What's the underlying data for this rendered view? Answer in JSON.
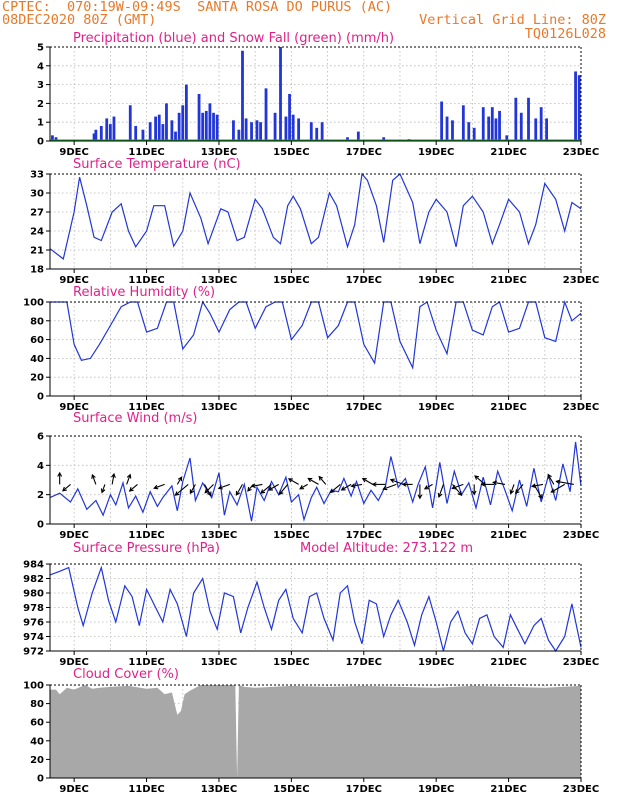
{
  "header": {
    "line1_left": "CPTEC:  070:19W-09:49S  SANTA ROSA DO PURUS (AC)",
    "line2_left": "08DEC2020 80Z (GMT)",
    "line2_right": "Vertical Grid Line: 80Z",
    "line3_right": "TQ0126L028"
  },
  "colors": {
    "header_text": "#e8792a",
    "panel_title": "#e0208a",
    "line_series": "#2236d8",
    "precip_bars": "#2236d8",
    "snow_line": "#1f9e2c",
    "cloud_fill": "#a8a8a8",
    "wind_arrows": "#000000"
  },
  "shared_x_axis": {
    "tick_labels": [
      "9DEC",
      "11DEC",
      "13DEC",
      "15DEC",
      "17DEC",
      "19DEC",
      "21DEC",
      "23DEC"
    ],
    "tick_days": [
      9,
      11,
      13,
      15,
      17,
      19,
      21,
      23
    ],
    "start_day": 8.333,
    "end_day": 23.0,
    "vertical_grid_each_day": true
  },
  "chart_data": [
    {
      "id": "precip",
      "type": "bar",
      "title": "Precipitation (blue) and Snow Fall (green) (mm/h)",
      "ylim": [
        0,
        5
      ],
      "yticks": [
        0,
        1,
        2,
        3,
        4,
        5
      ],
      "grid": true,
      "series": [
        {
          "name": "Precipitation",
          "x": [
            8.4,
            8.5,
            9.55,
            9.6,
            9.75,
            9.9,
            10.0,
            10.1,
            10.55,
            10.7,
            10.9,
            11.1,
            11.25,
            11.35,
            11.45,
            11.55,
            11.7,
            11.8,
            11.9,
            12.0,
            12.1,
            12.45,
            12.55,
            12.65,
            12.75,
            12.85,
            12.95,
            13.4,
            13.55,
            13.65,
            13.75,
            13.9,
            14.05,
            14.15,
            14.3,
            14.55,
            14.7,
            14.85,
            14.95,
            15.05,
            15.2,
            15.55,
            15.7,
            15.85,
            16.55,
            16.85,
            17.55,
            18.25,
            19.15,
            19.3,
            19.45,
            19.75,
            19.9,
            20.05,
            20.3,
            20.45,
            20.55,
            20.65,
            20.75,
            20.95,
            21.2,
            21.35,
            21.55,
            21.75,
            21.9,
            22.05,
            22.85,
            22.95
          ],
          "values": [
            0.3,
            0.2,
            0.4,
            0.6,
            0.8,
            1.2,
            0.9,
            1.3,
            1.9,
            0.8,
            0.6,
            1.0,
            1.3,
            1.4,
            0.9,
            2.0,
            1.1,
            0.5,
            1.5,
            1.9,
            3.0,
            2.5,
            1.5,
            1.6,
            2.0,
            1.5,
            1.4,
            1.1,
            0.6,
            4.8,
            1.2,
            1.0,
            1.1,
            1.0,
            2.8,
            1.5,
            5.0,
            1.3,
            2.5,
            1.4,
            1.2,
            1.0,
            0.7,
            1.0,
            0.2,
            0.5,
            0.2,
            0.1,
            2.1,
            1.3,
            1.1,
            1.9,
            1.0,
            0.7,
            1.8,
            1.3,
            1.8,
            1.2,
            1.6,
            0.3,
            2.3,
            1.5,
            2.3,
            1.2,
            1.8,
            1.2,
            3.7,
            3.5
          ]
        },
        {
          "name": "Snow Fall",
          "x": [
            8.333,
            23.0
          ],
          "values": [
            0,
            0
          ]
        }
      ]
    },
    {
      "id": "temp",
      "type": "line",
      "title": "Surface Temperature (nC)",
      "ylim": [
        18,
        33
      ],
      "yticks": [
        18,
        21,
        24,
        27,
        30,
        33
      ],
      "grid": true,
      "series": [
        {
          "name": "Temperature",
          "x": [
            8.333,
            8.7,
            9.0,
            9.15,
            9.35,
            9.55,
            9.75,
            10.05,
            10.3,
            10.5,
            10.7,
            11.0,
            11.2,
            11.5,
            11.75,
            12.0,
            12.2,
            12.5,
            12.7,
            13.05,
            13.25,
            13.5,
            13.7,
            14.0,
            14.2,
            14.5,
            14.7,
            14.9,
            15.05,
            15.25,
            15.55,
            15.75,
            16.05,
            16.25,
            16.55,
            16.75,
            16.95,
            17.1,
            17.35,
            17.55,
            17.8,
            18.0,
            18.35,
            18.55,
            18.8,
            19.0,
            19.3,
            19.55,
            19.75,
            20.0,
            20.3,
            20.55,
            20.75,
            21.0,
            21.3,
            21.55,
            21.75,
            22.0,
            22.3,
            22.55,
            22.75,
            23.0
          ],
          "values": [
            21.2,
            19.6,
            27.0,
            32.5,
            28.0,
            23.0,
            22.5,
            27.0,
            28.3,
            24.0,
            21.5,
            24.0,
            28.0,
            28.0,
            21.6,
            24.0,
            30.0,
            26.0,
            22.0,
            27.5,
            27.0,
            22.5,
            23.0,
            29.0,
            27.5,
            23.0,
            22.0,
            28.0,
            29.5,
            27.5,
            22.0,
            23.0,
            30.0,
            28.0,
            21.5,
            25.0,
            33.0,
            32.0,
            28.0,
            22.2,
            32.0,
            33.0,
            28.5,
            22.0,
            27.0,
            29.0,
            27.0,
            21.5,
            28.0,
            29.5,
            27.0,
            22.0,
            25.0,
            29.0,
            27.0,
            22.0,
            25.0,
            31.5,
            29.0,
            24.0,
            28.5,
            27.5
          ]
        }
      ]
    },
    {
      "id": "rh",
      "type": "line",
      "title": "Relative Humidity (%)",
      "ylim": [
        0,
        100
      ],
      "yticks": [
        0,
        20,
        40,
        60,
        80,
        100
      ],
      "grid": true,
      "series": [
        {
          "name": "Relative Humidity",
          "x": [
            8.333,
            8.8,
            9.0,
            9.2,
            9.45,
            9.7,
            10.0,
            10.3,
            10.55,
            10.75,
            11.0,
            11.3,
            11.55,
            11.75,
            12.0,
            12.3,
            12.55,
            12.75,
            13.0,
            13.3,
            13.55,
            13.75,
            14.0,
            14.3,
            14.55,
            14.75,
            15.0,
            15.3,
            15.55,
            15.75,
            16.0,
            16.3,
            16.55,
            16.75,
            17.0,
            17.3,
            17.55,
            17.75,
            18.0,
            18.35,
            18.55,
            18.75,
            19.0,
            19.3,
            19.55,
            19.75,
            20.0,
            20.3,
            20.55,
            20.75,
            21.0,
            21.3,
            21.55,
            21.75,
            22.0,
            22.3,
            22.55,
            22.75,
            23.0
          ],
          "values": [
            100,
            100,
            55,
            38,
            40,
            55,
            75,
            95,
            100,
            100,
            68,
            72,
            100,
            100,
            50,
            65,
            100,
            88,
            68,
            92,
            100,
            100,
            72,
            95,
            100,
            100,
            60,
            75,
            100,
            100,
            62,
            75,
            100,
            100,
            55,
            35,
            100,
            100,
            58,
            30,
            95,
            100,
            70,
            45,
            100,
            100,
            70,
            65,
            95,
            100,
            68,
            72,
            100,
            100,
            62,
            58,
            100,
            80,
            88
          ]
        }
      ]
    },
    {
      "id": "wind",
      "type": "line",
      "title": "Surface Wind (m/s)",
      "ylim": [
        0,
        6
      ],
      "yticks": [
        0,
        2,
        4,
        6
      ],
      "grid": true,
      "series": [
        {
          "name": "Wind Speed",
          "x": [
            8.333,
            8.6,
            8.9,
            9.1,
            9.35,
            9.6,
            9.8,
            10.0,
            10.15,
            10.35,
            10.5,
            10.7,
            10.9,
            11.1,
            11.3,
            11.45,
            11.7,
            11.85,
            12.0,
            12.2,
            12.35,
            12.55,
            12.8,
            13.0,
            13.15,
            13.3,
            13.5,
            13.7,
            13.9,
            14.05,
            14.25,
            14.45,
            14.65,
            14.85,
            15.0,
            15.2,
            15.35,
            15.55,
            15.7,
            15.9,
            16.1,
            16.3,
            16.45,
            16.65,
            16.8,
            17.0,
            17.2,
            17.4,
            17.6,
            17.75,
            17.95,
            18.15,
            18.35,
            18.5,
            18.7,
            18.9,
            19.1,
            19.3,
            19.5,
            19.7,
            19.9,
            20.1,
            20.3,
            20.5,
            20.7,
            20.9,
            21.1,
            21.3,
            21.5,
            21.7,
            21.9,
            22.1,
            22.3,
            22.5,
            22.7,
            22.85,
            23.0
          ],
          "values": [
            1.8,
            2.1,
            1.5,
            2.4,
            1.0,
            1.6,
            0.6,
            2.0,
            1.3,
            2.8,
            1.1,
            1.9,
            0.8,
            2.2,
            1.2,
            1.8,
            2.6,
            0.9,
            2.9,
            4.5,
            1.6,
            2.8,
            1.8,
            3.5,
            0.6,
            2.2,
            1.3,
            2.7,
            0.2,
            2.5,
            1.6,
            2.9,
            2.0,
            3.2,
            1.5,
            2.0,
            0.3,
            1.8,
            2.5,
            1.4,
            2.3,
            2.2,
            3.1,
            1.9,
            2.9,
            1.4,
            2.3,
            1.6,
            2.6,
            4.6,
            2.5,
            3.1,
            1.5,
            2.7,
            3.9,
            1.1,
            4.2,
            1.4,
            3.6,
            2.0,
            2.8,
            1.1,
            3.2,
            1.3,
            3.6,
            2.3,
            0.9,
            3.0,
            1.2,
            3.8,
            1.5,
            3.3,
            1.6,
            4.1,
            2.2,
            5.6,
            2.6
          ]
        },
        {
          "name": "Wind Direction",
          "x": [
            8.6,
            8.9,
            9.6,
            9.85,
            10.05,
            10.45,
            10.75,
            11.5,
            11.85,
            12.15,
            12.35,
            12.6,
            12.85,
            13.3,
            13.65,
            13.95,
            14.2,
            14.45,
            14.65,
            14.9,
            15.2,
            15.45,
            15.75,
            15.95,
            16.35,
            16.65,
            16.95,
            17.25,
            17.6,
            17.9,
            18.1,
            18.35,
            18.55,
            18.9,
            19.2,
            19.45,
            19.75,
            20.05,
            20.35,
            20.6,
            20.9,
            21.15,
            21.4,
            21.7,
            21.95,
            22.25,
            22.55,
            22.8
          ],
          "values": [
            0.0,
            230.0,
            340.0,
            200.0,
            10.0,
            20.0,
            230.0,
            250.0,
            30.0,
            230.0,
            210.0,
            150.0,
            225.0,
            250.0,
            210.0,
            220.0,
            260.0,
            230.0,
            240.0,
            220.0,
            300.0,
            240.0,
            300.0,
            320.0,
            230.0,
            240.0,
            260.0,
            300.0,
            270.0,
            250.0,
            290.0,
            270.0,
            180.0,
            240.0,
            200.0,
            140.0,
            250.0,
            180.0,
            310.0,
            270.0,
            280.0,
            200.0,
            220.0,
            150.0,
            260.0,
            330.0,
            240.0,
            280.0
          ]
        }
      ]
    },
    {
      "id": "pres",
      "type": "line",
      "title": "Surface Pressure (hPa)",
      "annotation": "Model Altitude: 273.122 m",
      "ylim": [
        972,
        984
      ],
      "yticks": [
        972,
        974,
        976,
        978,
        980,
        982,
        984
      ],
      "grid": true,
      "series": [
        {
          "name": "Pressure",
          "x": [
            8.333,
            8.6,
            8.85,
            9.1,
            9.25,
            9.5,
            9.75,
            9.95,
            10.15,
            10.4,
            10.6,
            10.8,
            11.0,
            11.2,
            11.45,
            11.65,
            11.85,
            12.1,
            12.3,
            12.55,
            12.75,
            12.95,
            13.15,
            13.4,
            13.6,
            13.8,
            14.05,
            14.25,
            14.45,
            14.65,
            14.85,
            15.05,
            15.3,
            15.5,
            15.7,
            15.9,
            16.15,
            16.35,
            16.55,
            16.75,
            16.95,
            17.15,
            17.35,
            17.55,
            17.75,
            17.95,
            18.2,
            18.4,
            18.6,
            18.8,
            19.0,
            19.2,
            19.4,
            19.6,
            19.8,
            20.0,
            20.2,
            20.4,
            20.6,
            20.85,
            21.05,
            21.25,
            21.45,
            21.7,
            21.9,
            22.1,
            22.3,
            22.55,
            22.75,
            23.0
          ],
          "values": [
            982.5,
            983.0,
            983.5,
            978.0,
            975.5,
            980.0,
            983.5,
            979.0,
            976.0,
            981.0,
            979.5,
            975.5,
            980.5,
            978.5,
            976.0,
            980.5,
            978.5,
            974.0,
            980.0,
            982.0,
            977.5,
            975.0,
            980.0,
            979.5,
            974.5,
            978.0,
            981.5,
            978.0,
            975.0,
            979.0,
            980.5,
            976.5,
            974.5,
            979.5,
            980.0,
            976.5,
            973.5,
            980.0,
            981.0,
            976.0,
            973.0,
            979.0,
            978.5,
            974.0,
            977.0,
            979.0,
            976.0,
            972.8,
            977.0,
            979.5,
            976.0,
            972.0,
            976.0,
            977.5,
            974.5,
            973.0,
            976.5,
            977.0,
            974.0,
            972.5,
            977.0,
            975.0,
            973.0,
            975.5,
            976.5,
            973.5,
            972.0,
            974.0,
            978.5,
            972.5
          ]
        }
      ]
    },
    {
      "id": "cloud",
      "type": "area",
      "title": "Cloud Cover (%)",
      "ylim": [
        0,
        100
      ],
      "yticks": [
        0,
        20,
        40,
        60,
        80,
        100
      ],
      "grid": true,
      "series": [
        {
          "name": "Cloud Cover",
          "x": [
            8.333,
            8.5,
            8.6,
            8.8,
            9.0,
            9.3,
            9.5,
            9.7,
            10.0,
            10.5,
            11.0,
            11.3,
            11.5,
            11.7,
            11.85,
            11.95,
            12.05,
            12.2,
            12.5,
            13.0,
            13.3,
            13.45,
            13.5,
            13.55,
            13.7,
            14.0,
            15.0,
            16.0,
            17.0,
            18.0,
            19.0,
            20.0,
            21.0,
            22.0,
            23.0
          ],
          "values": [
            95,
            95,
            90,
            97,
            95,
            100,
            96,
            97,
            98,
            99,
            96,
            97,
            90,
            92,
            68,
            72,
            90,
            94,
            100,
            100,
            100,
            100,
            0,
            100,
            98,
            97,
            99,
            98,
            99,
            98,
            97,
            99,
            98,
            97,
            99
          ]
        }
      ]
    }
  ]
}
